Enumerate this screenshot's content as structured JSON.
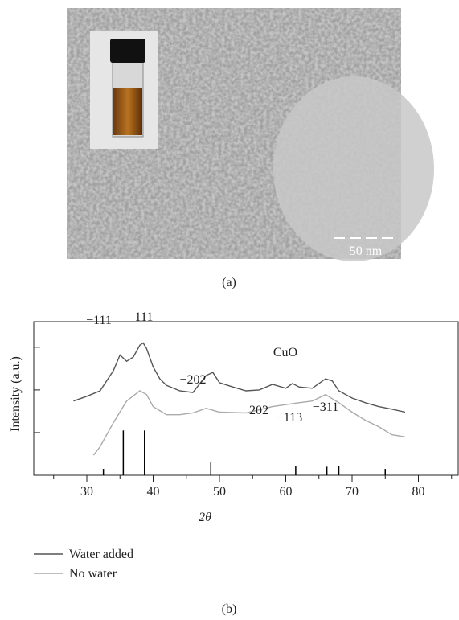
{
  "figure_a": {
    "scale_bar": "50 nm",
    "caption": "(a)"
  },
  "chart_data": {
    "type": "line",
    "ylabel": "Intensity (a.u.)",
    "xlabel": "2θ",
    "xlim": [
      22,
      86
    ],
    "xticks": [
      30,
      40,
      50,
      60,
      70,
      80
    ],
    "xminorticks": [
      25,
      35,
      45,
      55,
      65,
      75,
      85
    ],
    "ylim": [
      0,
      3.6
    ],
    "yticks": [
      1,
      2,
      3
    ],
    "annotations": [
      "−111",
      "111",
      "CuO",
      "−202",
      "202",
      "−113",
      "−311"
    ],
    "series": [
      {
        "name": "Water added",
        "color": "#555555",
        "x": [
          28,
          30,
          32,
          34,
          35,
          36,
          37,
          38,
          38.5,
          39,
          40,
          41,
          42,
          44,
          46,
          48,
          49,
          50,
          52,
          54,
          56,
          58,
          60,
          61,
          62,
          64,
          66,
          67,
          68,
          70,
          72,
          74,
          76,
          78
        ],
        "values": [
          1.74,
          1.85,
          1.98,
          2.45,
          2.82,
          2.67,
          2.77,
          3.05,
          3.1,
          2.97,
          2.54,
          2.26,
          2.11,
          1.98,
          1.94,
          2.34,
          2.41,
          2.17,
          2.07,
          1.98,
          2.0,
          2.13,
          2.04,
          2.15,
          2.07,
          2.04,
          2.26,
          2.21,
          1.98,
          1.81,
          1.7,
          1.61,
          1.55,
          1.48
        ]
      },
      {
        "name": "No water",
        "color": "#aaaaaa",
        "x": [
          31,
          32,
          34,
          36,
          38,
          39,
          40,
          42,
          44,
          46,
          48,
          50,
          54,
          58,
          62,
          64,
          66,
          68,
          70,
          72,
          74,
          76,
          78
        ],
        "values": [
          0.47,
          0.67,
          1.23,
          1.74,
          1.98,
          1.89,
          1.61,
          1.42,
          1.42,
          1.46,
          1.57,
          1.48,
          1.46,
          1.61,
          1.7,
          1.74,
          1.89,
          1.7,
          1.48,
          1.29,
          1.14,
          0.95,
          0.9
        ]
      }
    ],
    "reference": {
      "color": "#000000",
      "x": [
        32.5,
        35.5,
        38.7,
        48.7,
        61.5,
        66.2,
        68,
        75
      ],
      "values": [
        0.15,
        1.05,
        1.05,
        0.3,
        0.22,
        0.2,
        0.22,
        0.15
      ]
    }
  },
  "caption_b": "(b)"
}
